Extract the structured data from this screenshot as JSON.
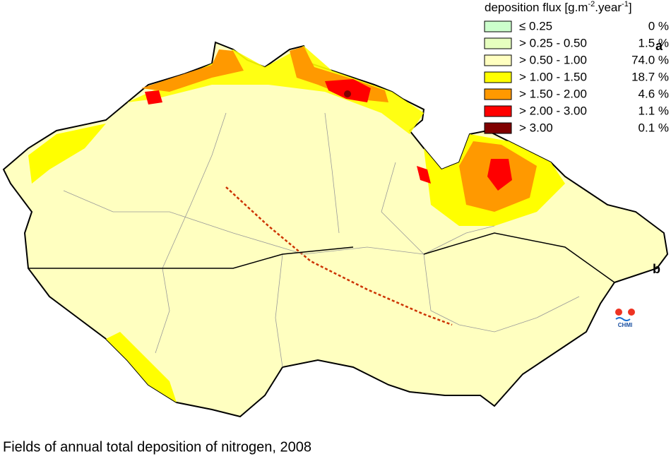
{
  "legend": {
    "title": {
      "text": "deposition flux [g.m",
      "sup1": "-2",
      "mid": ".year",
      "sup2": "-1",
      "end": "]"
    },
    "entries": [
      {
        "label": "≤ 0.25",
        "share": "0 %",
        "color": "#ccffcc"
      },
      {
        "label": "> 0.25 - 0.50",
        "share": "1.5 %",
        "color": "#e6ffbf"
      },
      {
        "label": "> 0.50 - 1.00",
        "share": "74.0 %",
        "color": "#ffffc0"
      },
      {
        "label": "> 1.00 - 1.50",
        "share": "18.7 %",
        "color": "#ffff00"
      },
      {
        "label": "> 1.50 - 2.00",
        "share": "4.6 %",
        "color": "#ff9900"
      },
      {
        "label": "> 2.00 - 3.00",
        "share": "1.1 %",
        "color": "#ff0000"
      },
      {
        "label": "> 3.00",
        "share": "0.1 %",
        "color": "#800000"
      }
    ]
  },
  "map": {
    "marker_a": "a",
    "marker_b": "b",
    "logo": "CHMI"
  },
  "caption": "Fields of annual total deposition of nitrogen, 2008"
}
